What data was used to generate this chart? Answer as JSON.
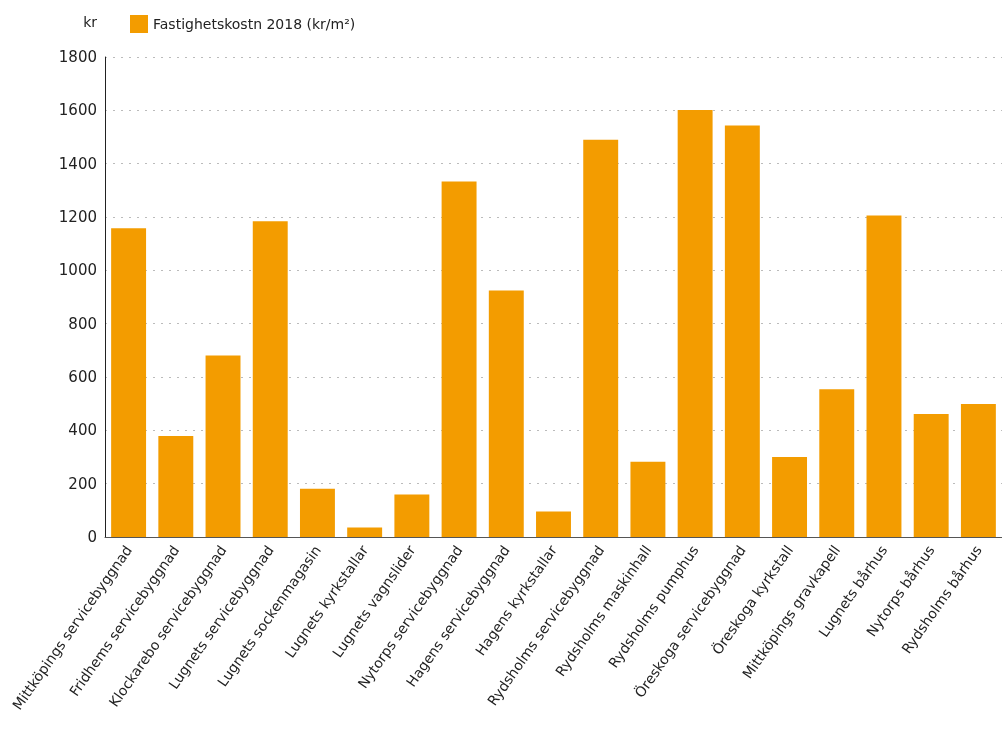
{
  "chart_data": {
    "type": "bar",
    "ylabel": "kr",
    "categories": [
      "Mittköpings servicebyggnad",
      "Fridhems servicebyggnad",
      "Klockarebo servicebyggnad",
      "Lugnets servicebyggnad",
      "Lugnets sockenmagasin",
      "Lugnets kyrkstallar",
      "Lugnets vagnslider",
      "Nytorps servicebyggnad",
      "Hagens servicebyggnad",
      "Hagens kyrkstallar",
      "Rydsholms servicebyggnad",
      "Rydsholms maskinhall",
      "Rydsholms pumphus",
      "Öreskoga servicebyggnad",
      "Öreskoga kyrkstall",
      "Mittköpings gravkapell",
      "Lugnets bårhus",
      "Nytorps bårhus",
      "Rydsholms bårhus"
    ],
    "series": [
      {
        "name": "Fastighetskostn 2018 (kr/m²)",
        "color": "#f39c00",
        "values": [
          1158,
          379,
          681,
          1184,
          181,
          36,
          159,
          1333,
          924,
          96,
          1490,
          282,
          1601,
          1543,
          300,
          554,
          1206,
          461,
          499
        ]
      }
    ],
    "ylim": [
      0,
      1800
    ],
    "yticks": [
      0,
      200,
      400,
      600,
      800,
      1000,
      1200,
      1400,
      1600,
      1800
    ],
    "grid": "y",
    "legend": "top left"
  }
}
